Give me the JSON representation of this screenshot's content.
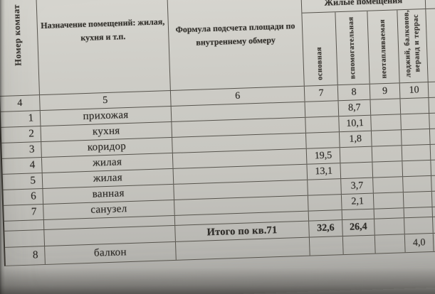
{
  "colors": {
    "paper": "#cbcac4",
    "line": "#57544d",
    "ink": "#2f2d29"
  },
  "table": {
    "header": {
      "room_number": "Номер комнат",
      "purpose": "Назначение помещений: жилая, кухня и т.п.",
      "formula": "Формула подсчета площади по внутреннему обмеру",
      "living_group": "Жилые помещения",
      "sub_main": "основная",
      "sub_auxiliary": "вспомогательная",
      "sub_unheated": "неотапливаемая",
      "sub_loggia": "лоджий, балконов, веранд и террас"
    },
    "column_numbers": [
      "4",
      "5",
      "6",
      "7",
      "8",
      "9",
      "10"
    ],
    "rows": [
      {
        "num": "1",
        "name": "прихожая",
        "main": "",
        "aux": "8,7",
        "unheated": "",
        "balcony": ""
      },
      {
        "num": "2",
        "name": "кухня",
        "main": "",
        "aux": "10,1",
        "unheated": "",
        "balcony": ""
      },
      {
        "num": "3",
        "name": "коридор",
        "main": "",
        "aux": "1,8",
        "unheated": "",
        "balcony": ""
      },
      {
        "num": "4",
        "name": "жилая",
        "main": "19,5",
        "aux": "",
        "unheated": "",
        "balcony": ""
      },
      {
        "num": "5",
        "name": "жилая",
        "main": "13,1",
        "aux": "",
        "unheated": "",
        "balcony": ""
      },
      {
        "num": "6",
        "name": "ванная",
        "main": "",
        "aux": "3,7",
        "unheated": "",
        "balcony": ""
      },
      {
        "num": "7",
        "name": "санузел",
        "main": "",
        "aux": "2,1",
        "unheated": "",
        "balcony": ""
      }
    ],
    "total": {
      "label": "Итого по кв.71",
      "main": "32,6",
      "aux": "26,4"
    },
    "balcony_row": {
      "num": "8",
      "name": "балкон",
      "main": "",
      "aux": "",
      "unheated": "",
      "balcony": "4,0"
    }
  }
}
